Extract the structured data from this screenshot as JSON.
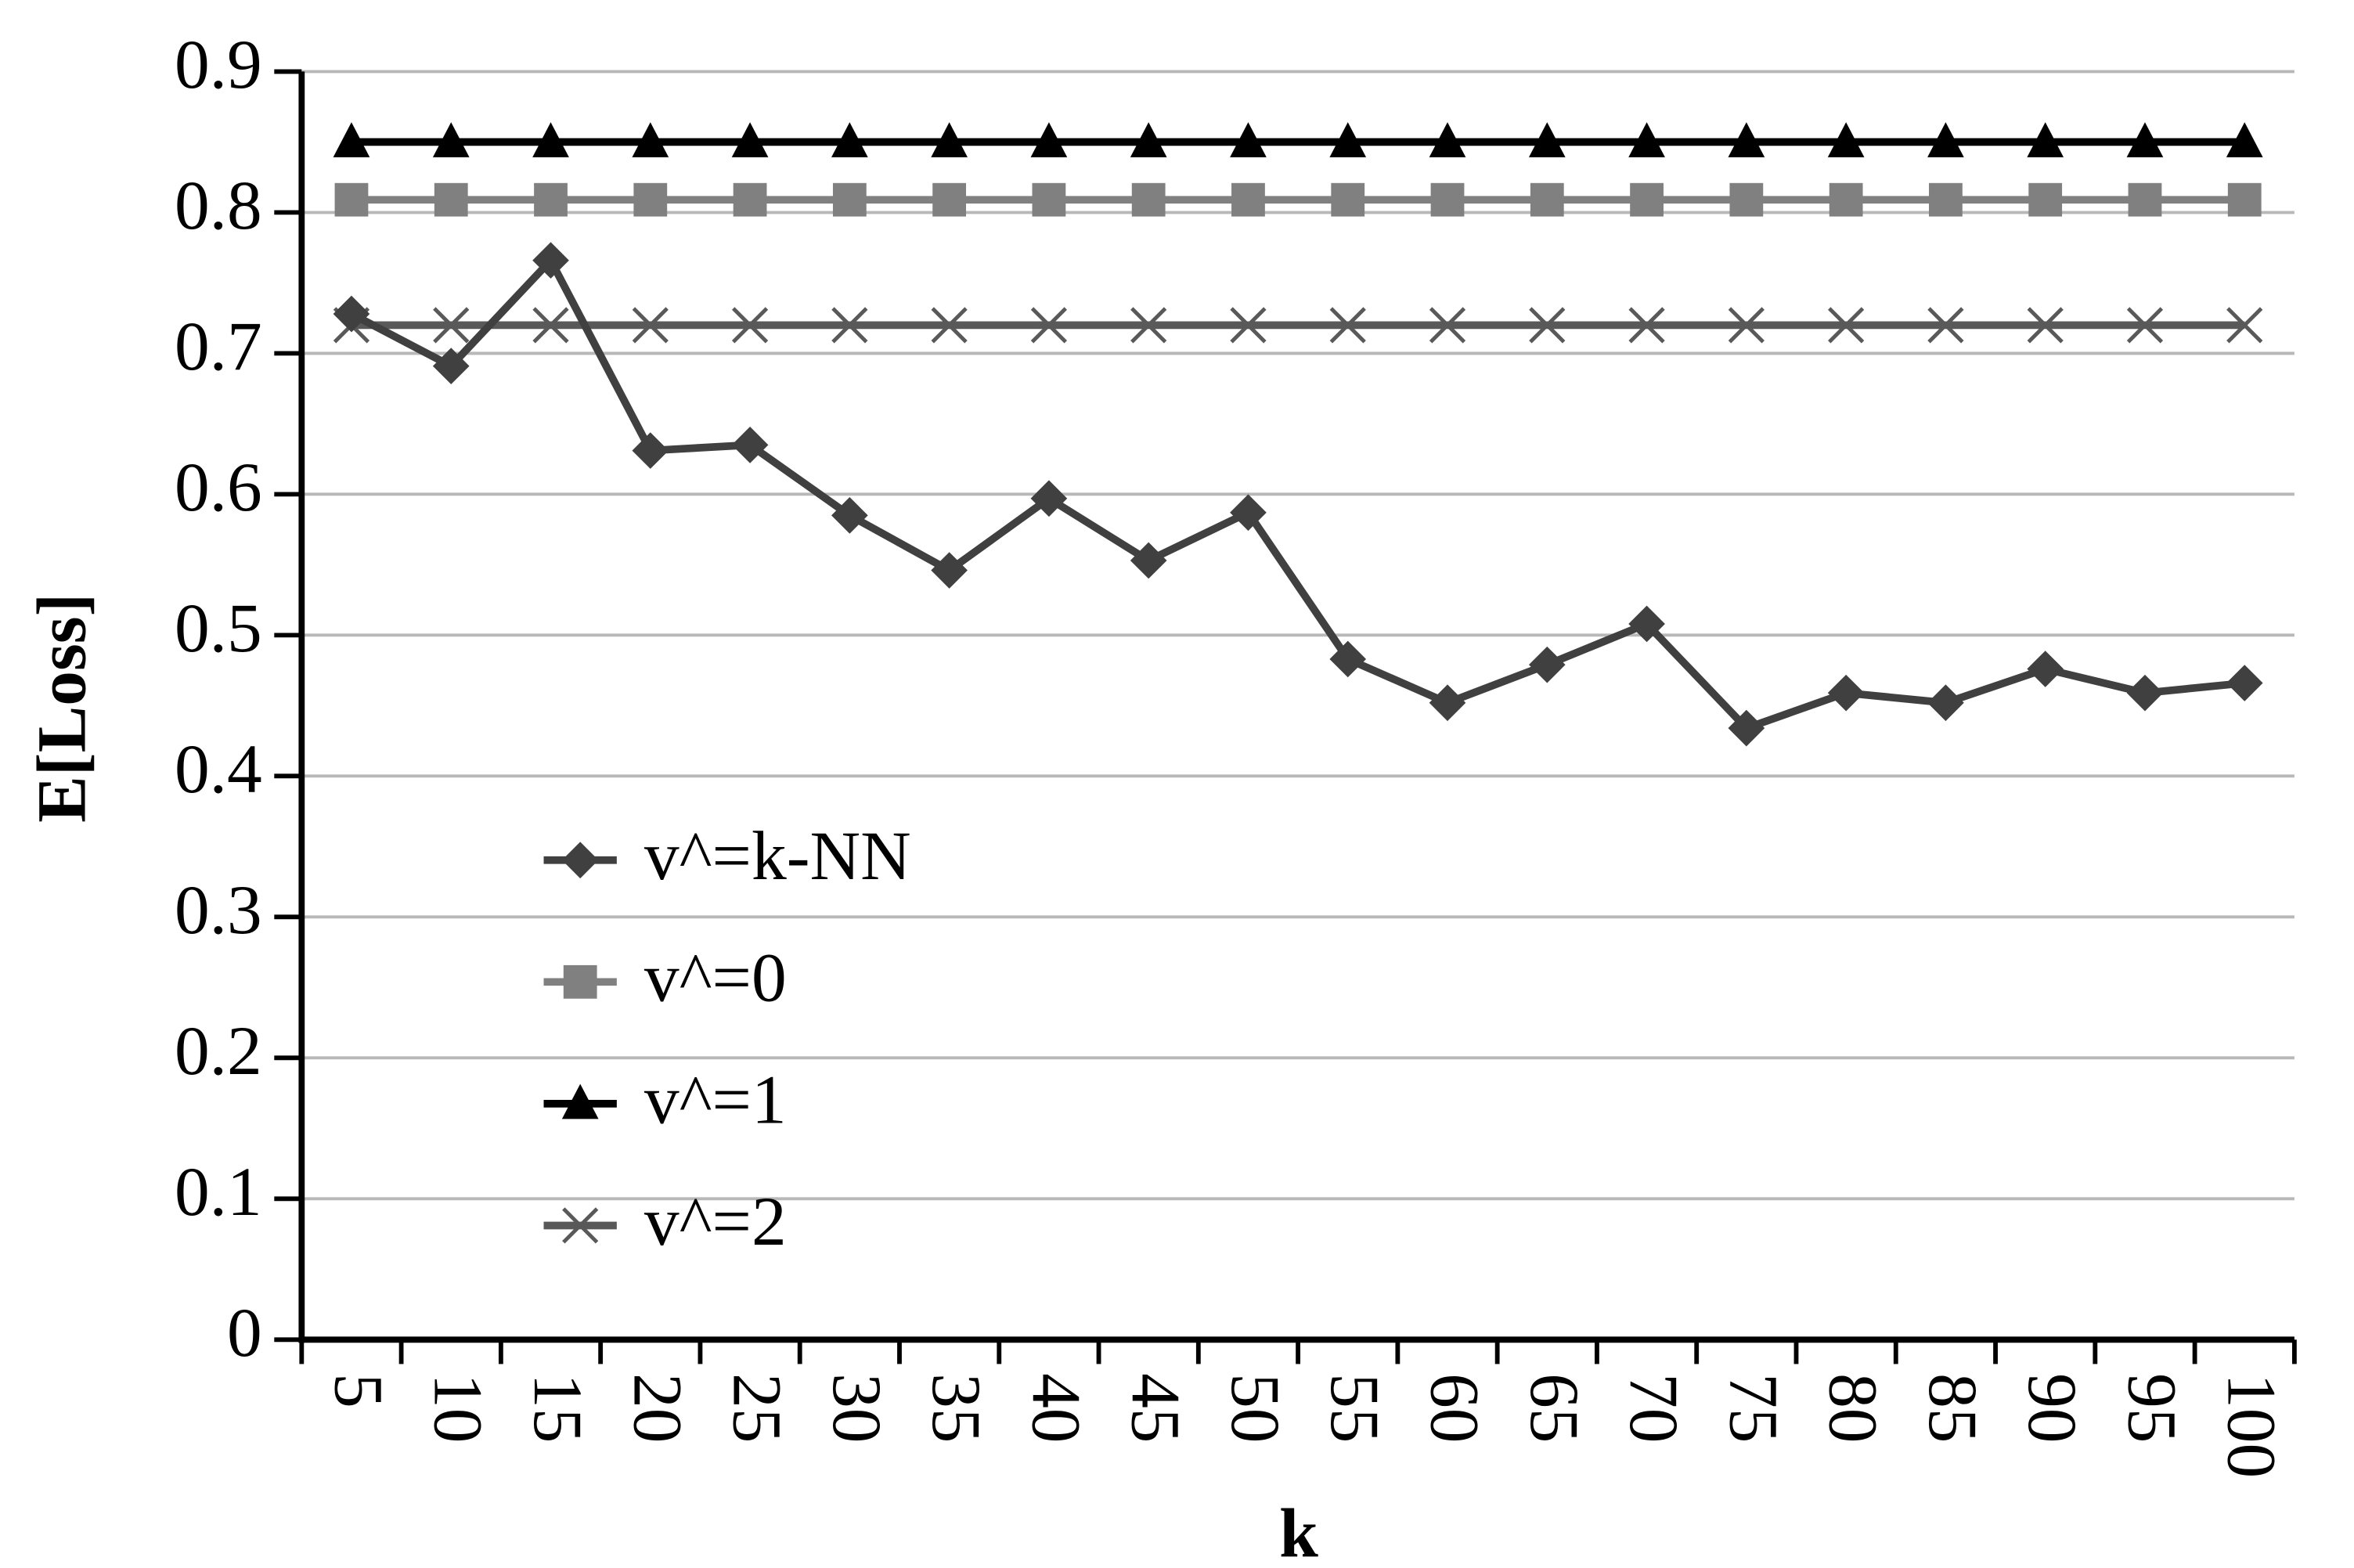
{
  "chart_data": {
    "type": "line",
    "xlabel": "k",
    "ylabel": "E[Loss]",
    "categories": [
      "5",
      "10",
      "15",
      "20",
      "25",
      "30",
      "35",
      "40",
      "45",
      "50",
      "55",
      "60",
      "65",
      "70",
      "75",
      "80",
      "85",
      "90",
      "95",
      "100"
    ],
    "series": [
      {
        "name": "v^=k-NN",
        "color": "#404040",
        "marker": "diamond",
        "values": [
          0.728,
          0.691,
          0.766,
          0.631,
          0.635,
          0.585,
          0.546,
          0.597,
          0.553,
          0.587,
          0.483,
          0.452,
          0.479,
          0.508,
          0.434,
          0.459,
          0.452,
          0.476,
          0.459,
          0.466
        ]
      },
      {
        "name": "v^=0",
        "color": "#808080",
        "marker": "square",
        "values": [
          0.809,
          0.809,
          0.809,
          0.809,
          0.809,
          0.809,
          0.809,
          0.809,
          0.809,
          0.809,
          0.809,
          0.809,
          0.809,
          0.809,
          0.809,
          0.809,
          0.809,
          0.809,
          0.809,
          0.809
        ]
      },
      {
        "name": "v^=1",
        "color": "#000000",
        "marker": "triangle",
        "values": [
          0.85,
          0.85,
          0.85,
          0.85,
          0.85,
          0.85,
          0.85,
          0.85,
          0.85,
          0.85,
          0.85,
          0.85,
          0.85,
          0.85,
          0.85,
          0.85,
          0.85,
          0.85,
          0.85,
          0.85
        ]
      },
      {
        "name": "v^=2",
        "color": "#595959",
        "marker": "x",
        "values": [
          0.72,
          0.72,
          0.72,
          0.72,
          0.72,
          0.72,
          0.72,
          0.72,
          0.72,
          0.72,
          0.72,
          0.72,
          0.72,
          0.72,
          0.72,
          0.72,
          0.72,
          0.72,
          0.72,
          0.72
        ]
      }
    ],
    "ylim": [
      0,
      0.9
    ],
    "yticks": [
      0,
      0.1,
      0.2,
      0.3,
      0.4,
      0.5,
      0.6,
      0.7,
      0.8,
      0.9
    ],
    "grid": true,
    "legend": "left"
  }
}
